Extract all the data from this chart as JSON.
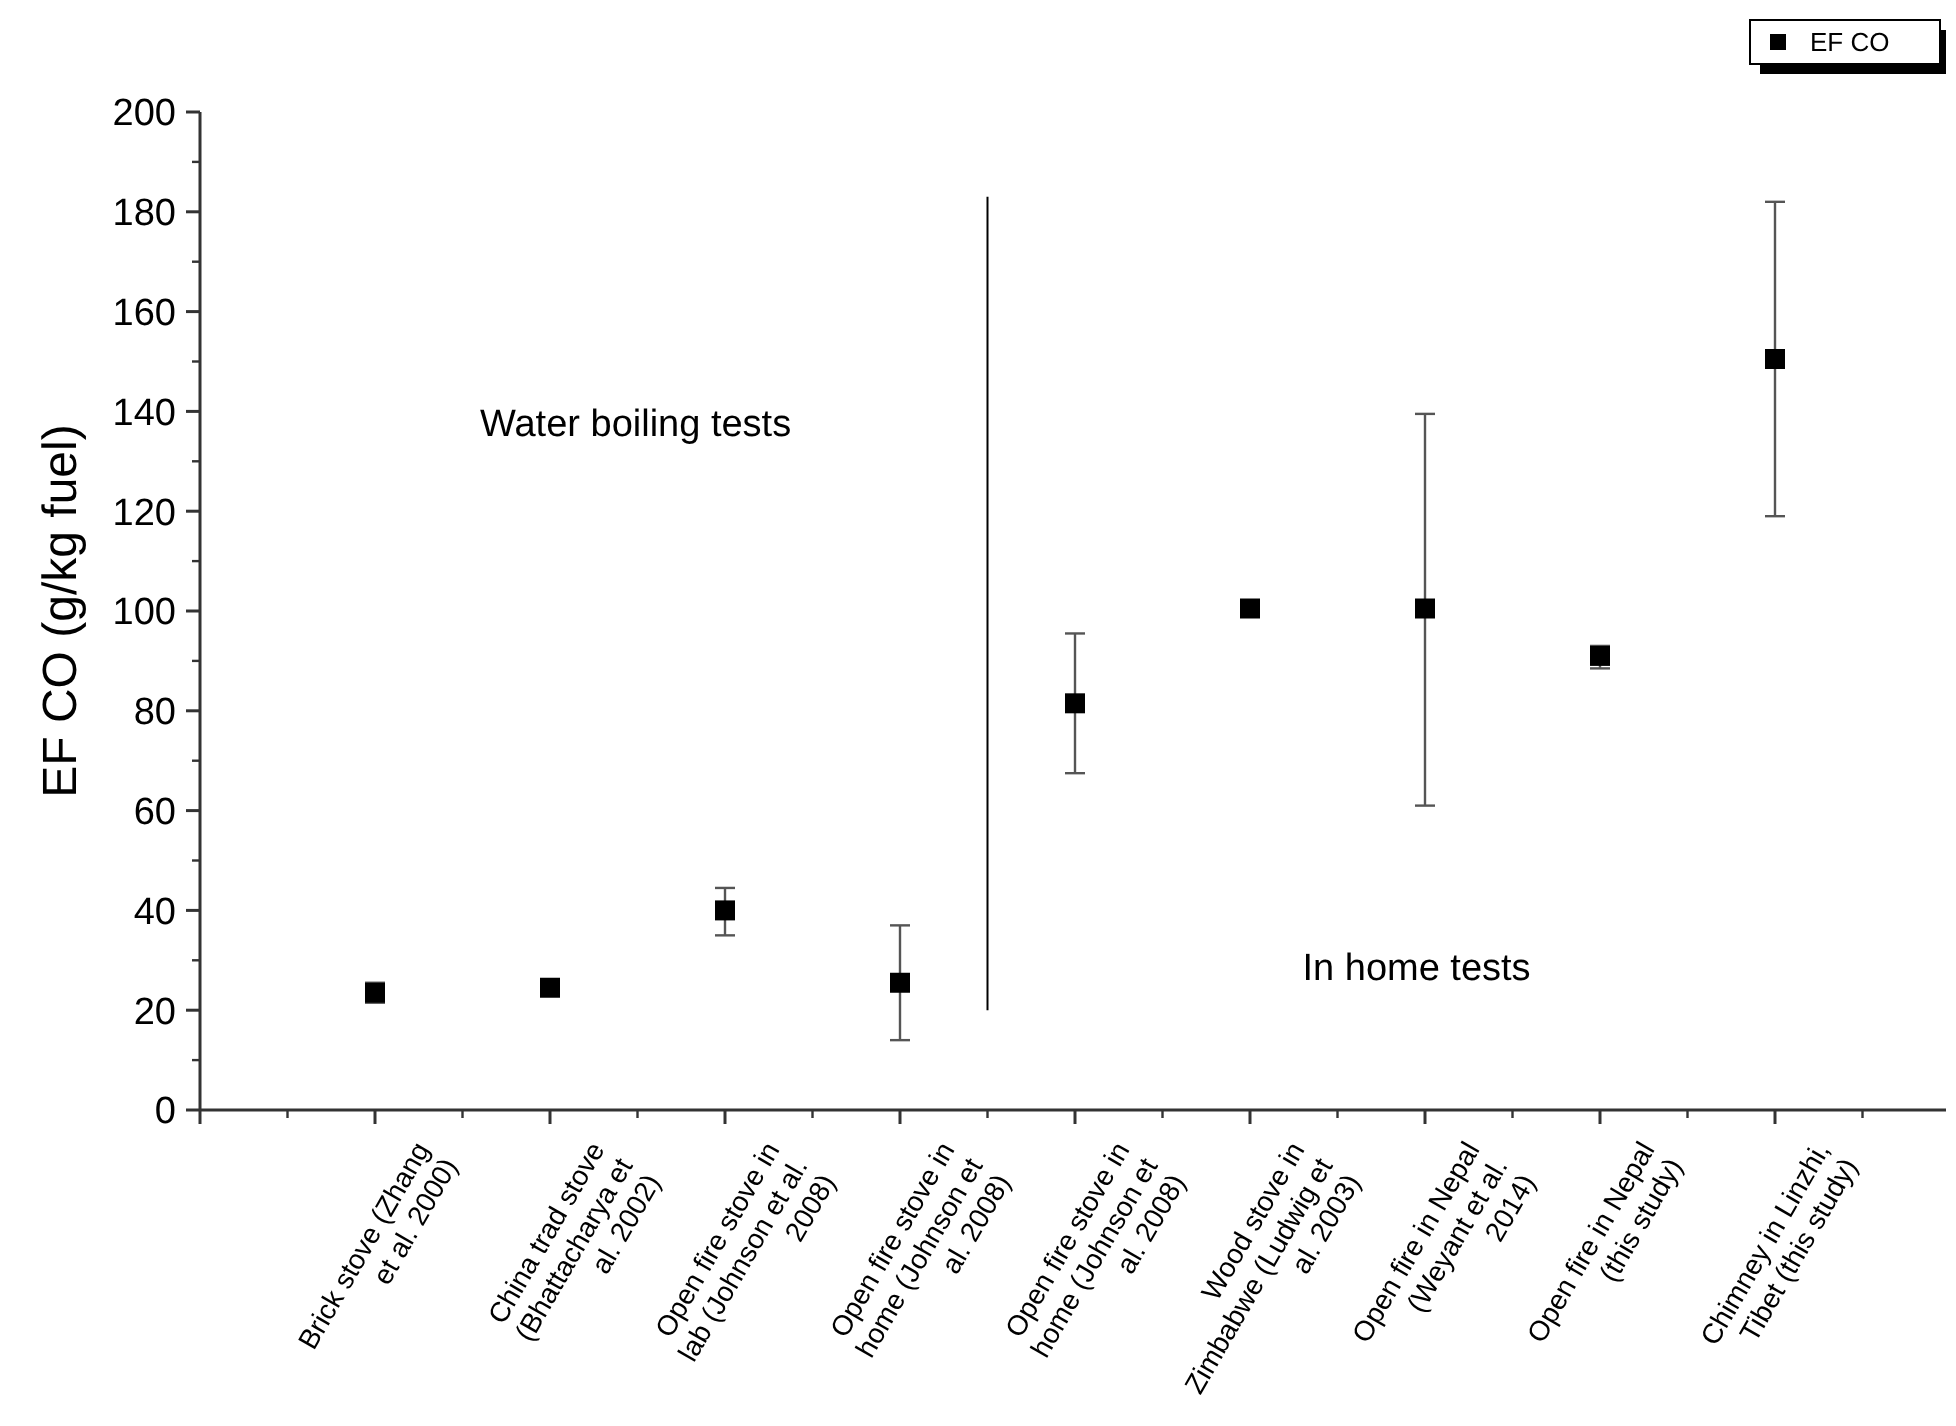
{
  "chart_data": {
    "type": "scatter",
    "ylabel": "EF CO (g/kg fuel)",
    "categories": [
      "Brick stove (Zhang et al. 2000)",
      "China trad stove (Bhattacharya et al. 2002)",
      "Open fire stove in lab (Johnson et al. 2008)",
      "Open fire stove in home (Johnson et al. 2008)",
      "Open fire stove in home (Johnson et al. 2008)",
      "Wood stove in Zimbabwe (Ludwig et al. 2003)",
      "Open fire in Nepal (Weyant et al. 2014)",
      "Open fire in Nepal (this study)",
      "Chimney in Linzhi, Tibet (this study)"
    ],
    "series": [
      {
        "name": "EF CO",
        "color": "#000000",
        "values": [
          23.5,
          24.5,
          40,
          25.5,
          81.5,
          100.5,
          100.5,
          91,
          150.5
        ],
        "errors": [
          2,
          null,
          [
            35,
            44.5
          ],
          [
            14,
            37
          ],
          [
            67.5,
            95.5
          ],
          null,
          [
            61,
            139.5
          ],
          [
            88.5,
            93
          ],
          [
            119,
            182
          ]
        ]
      }
    ],
    "ylim": [
      0,
      200
    ],
    "yticks": [
      0,
      20,
      40,
      60,
      80,
      100,
      120,
      140,
      160,
      180,
      200
    ],
    "annotations": [
      "Water boiling tests",
      "In home tests"
    ],
    "marker": "square",
    "legend": "top right"
  }
}
